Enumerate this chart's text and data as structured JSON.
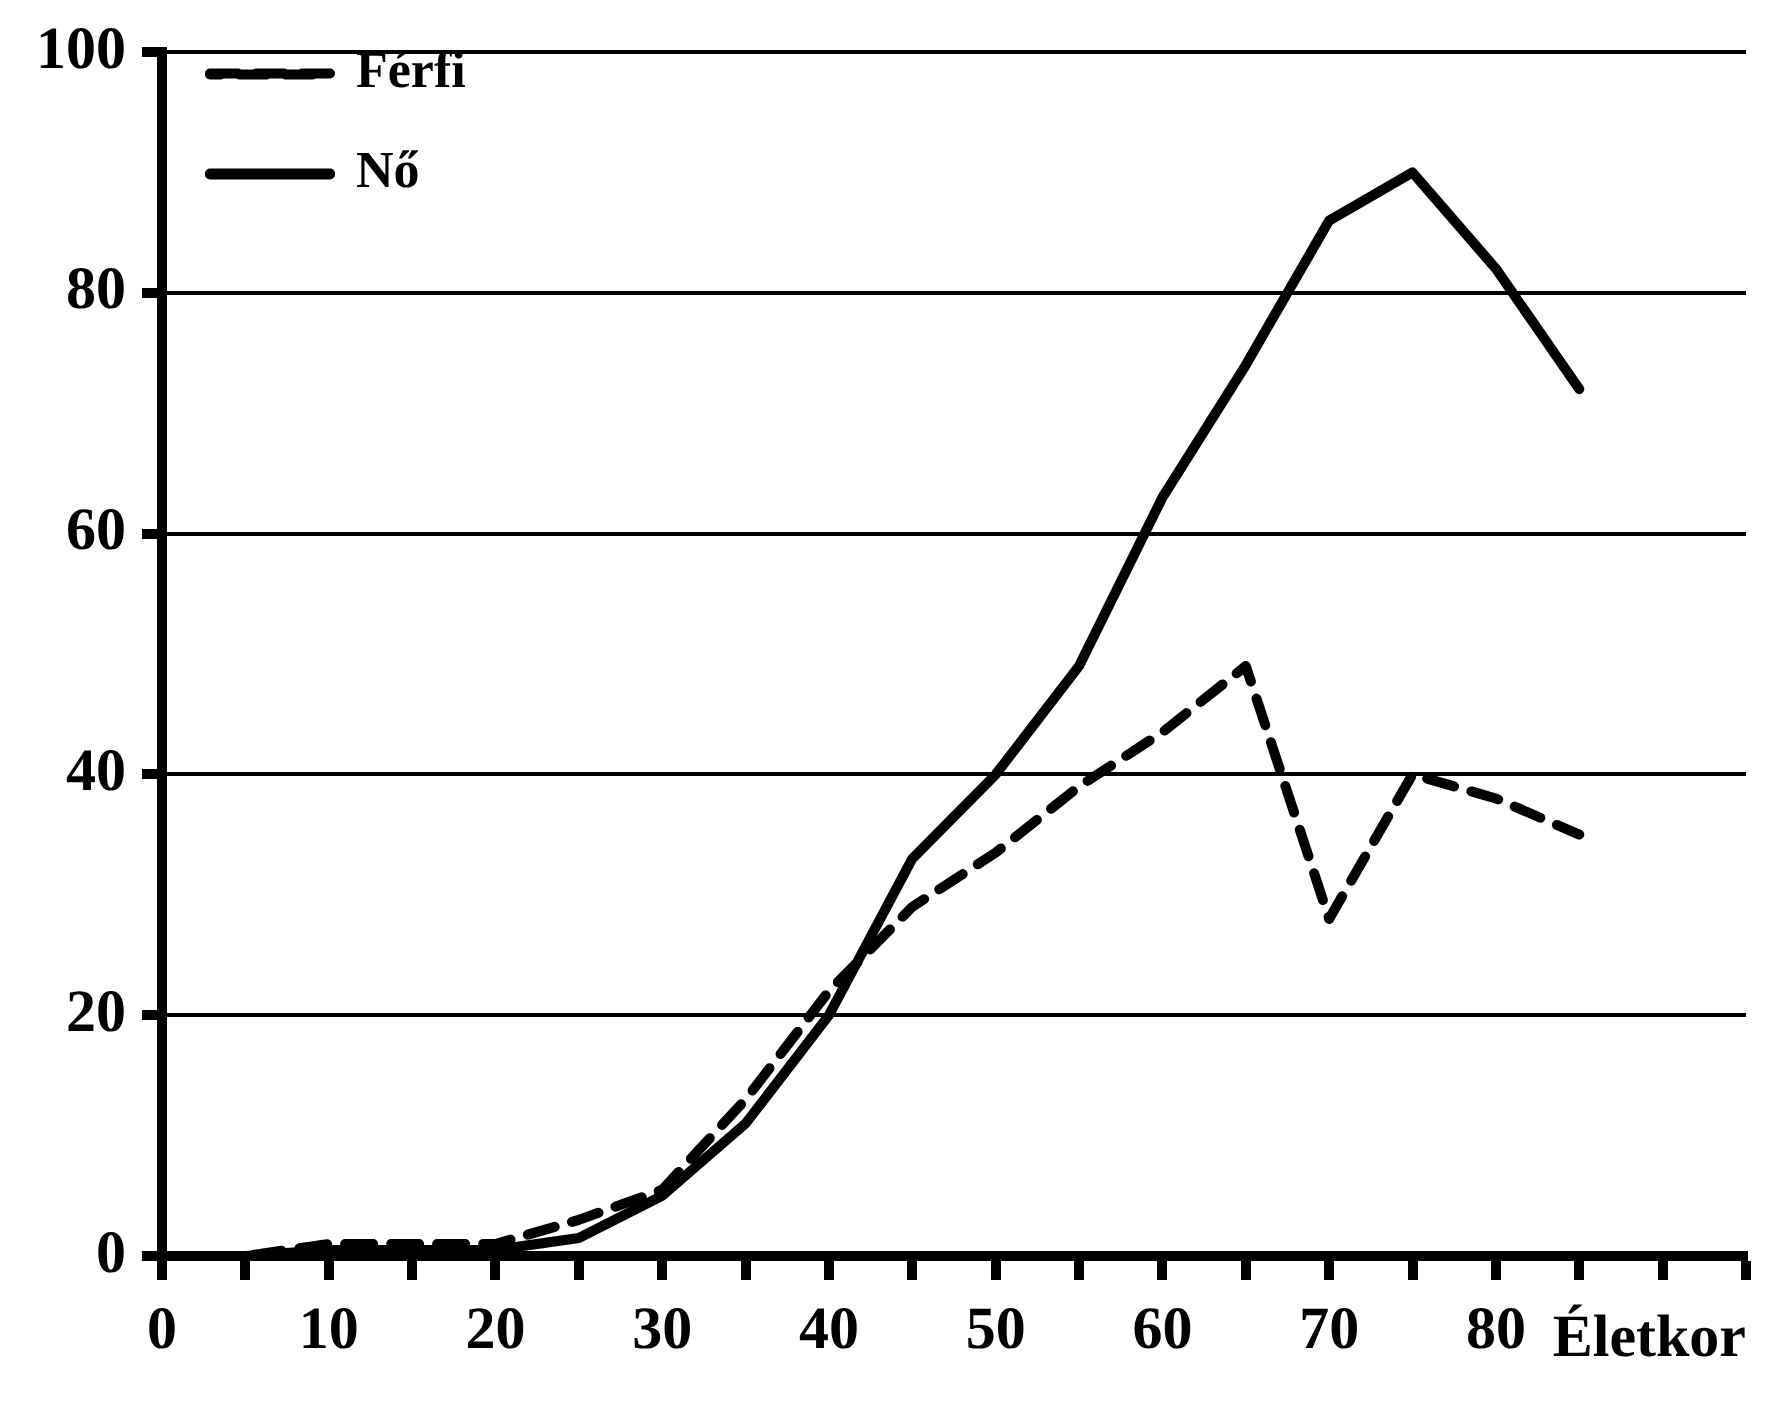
{
  "chart_data": {
    "type": "line",
    "xlabel": "Életkor",
    "x": [
      0,
      5,
      10,
      15,
      20,
      25,
      30,
      35,
      40,
      45,
      50,
      55,
      60,
      65,
      70,
      75,
      80,
      85
    ],
    "series": [
      {
        "name": "Férfi",
        "color": "#000000",
        "line_style": "dashed",
        "values": [
          0,
          0,
          1,
          1,
          1,
          3,
          5.5,
          13,
          22,
          29,
          33.5,
          39,
          43.5,
          49,
          28,
          40,
          38,
          35
        ]
      },
      {
        "name": "Nő",
        "color": "#000000",
        "line_style": "solid",
        "values": [
          0,
          0,
          0.5,
          0.5,
          0.5,
          1.5,
          5,
          11,
          20,
          33,
          40,
          49,
          63,
          74,
          86,
          90,
          82,
          72
        ]
      }
    ],
    "xlim": [
      0,
      95
    ],
    "xticks": [
      0,
      {
        "value": 5,
        "label": null
      },
      10,
      {
        "value": 15,
        "label": null
      },
      20,
      {
        "value": 25,
        "label": null
      },
      30,
      {
        "value": 35,
        "label": null
      },
      40,
      {
        "value": 45,
        "label": null
      },
      50,
      {
        "value": 55,
        "label": null
      },
      60,
      {
        "value": 65,
        "label": null
      },
      70,
      {
        "value": 75,
        "label": null
      },
      80,
      {
        "value": 85,
        "label": null
      },
      {
        "value": 90,
        "label": null
      },
      {
        "value": 95,
        "label": null
      }
    ],
    "ylim": [
      0,
      100
    ],
    "yticks": [
      0,
      20,
      40,
      60,
      80,
      100
    ],
    "grid": "y",
    "legend": "top left",
    "marker": "none"
  }
}
